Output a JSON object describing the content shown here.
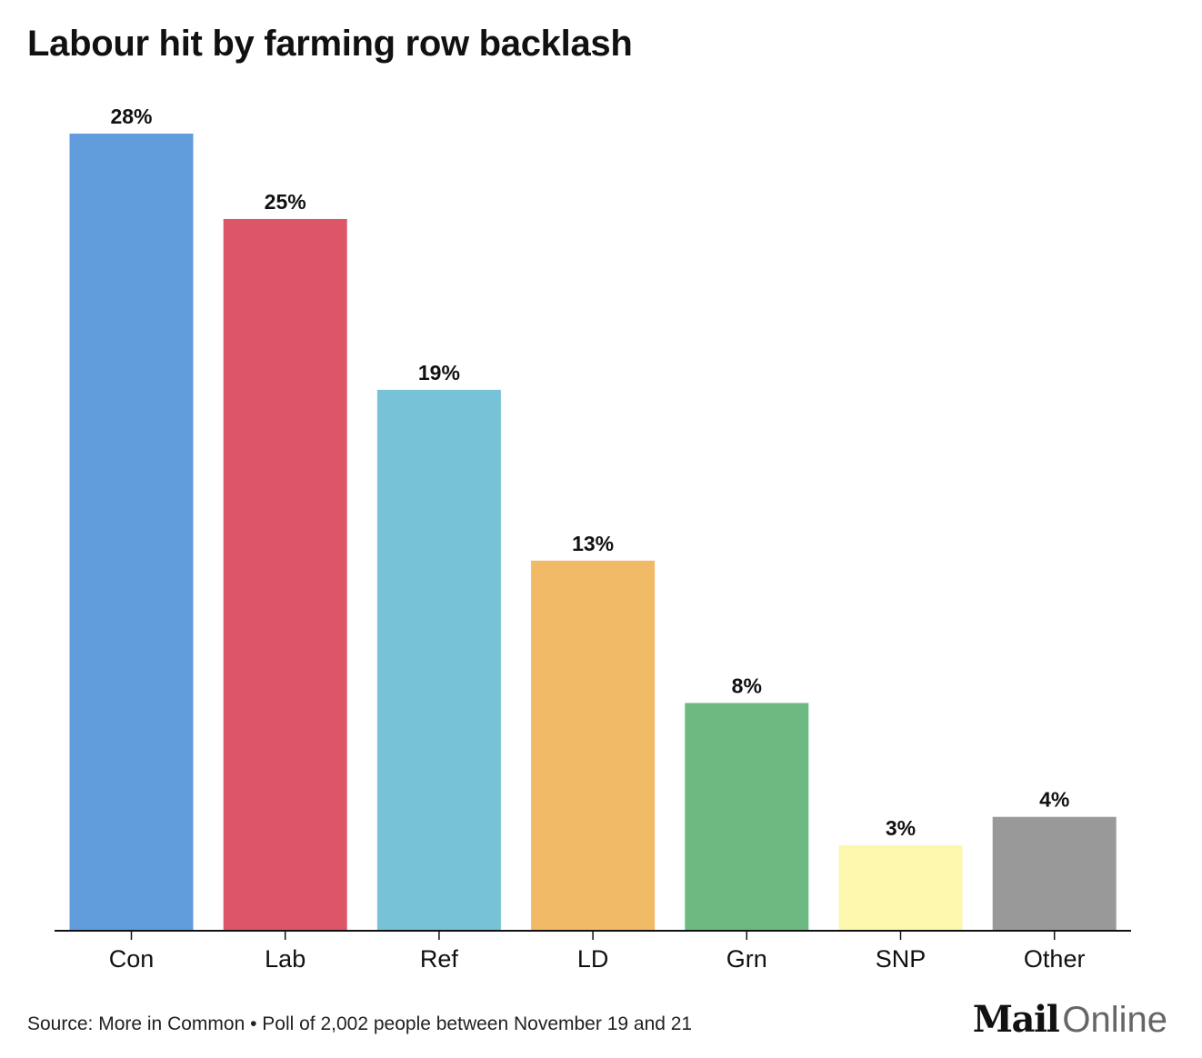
{
  "title": "Labour hit by farming row backlash",
  "source": "Source: More in Common • Poll of 2,002 people between November 19 and 21",
  "logo": {
    "part1": "Mail",
    "part2": "Online"
  },
  "chart_data": {
    "type": "bar",
    "title": "Labour hit by farming row backlash",
    "xlabel": "",
    "ylabel": "",
    "grid": false,
    "ylim": [
      0,
      28
    ],
    "categories": [
      "Con",
      "Lab",
      "Ref",
      "LD",
      "Grn",
      "SNP",
      "Other"
    ],
    "values": [
      28,
      25,
      19,
      13,
      8,
      3,
      4
    ],
    "value_labels": [
      "28%",
      "25%",
      "19%",
      "13%",
      "8%",
      "3%",
      "4%"
    ],
    "colors": [
      "#619cdd",
      "#dc5668",
      "#77c2d6",
      "#f0ba67",
      "#6db981",
      "#fdf7ae",
      "#999999"
    ]
  }
}
